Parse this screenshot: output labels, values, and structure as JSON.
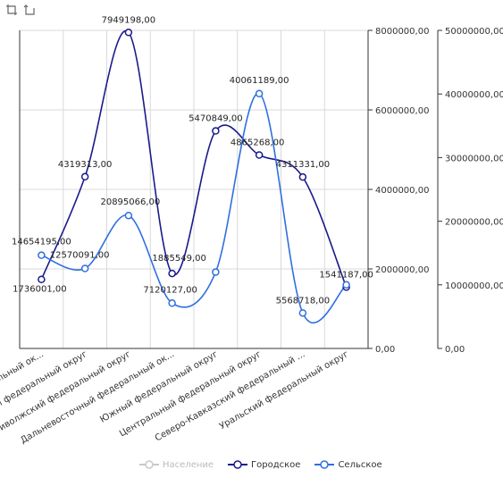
{
  "toolbar": {
    "icons": [
      "crop-zoom-icon",
      "zoom-reset-icon"
    ]
  },
  "colors": {
    "urban": "#1a1a8c",
    "rural": "#2f6fe0",
    "population_disabled": "#c8c8c8",
    "grid": "#d9d9d9",
    "axis": "#333333"
  },
  "legend": [
    {
      "label": "Население",
      "enabled": false
    },
    {
      "label": "Городское",
      "enabled": true
    },
    {
      "label": "Сельское",
      "enabled": true
    }
  ],
  "chart_data": {
    "type": "line",
    "smooth": true,
    "categories": [
      "Северо-Западный федеральный ок...",
      "Сибирский федеральный округ",
      "Приволжский федеральный округ",
      "Дальневосточный федеральный ок...",
      "Южный федеральный округ",
      "Центральный федеральный округ",
      "Северо-Кавказский федеральный ...",
      "Уральский федеральный округ"
    ],
    "series": [
      {
        "name": "Городское",
        "axis": "left",
        "values": [
          1736001,
          4319313,
          7949198,
          1885549,
          5470849,
          4865268,
          4311331,
          1541187
        ],
        "labels": [
          "1736001,00",
          "4319313,00",
          "7949198,00",
          "1885549,00",
          "5470849,00",
          "4865268,00",
          "4311331,00",
          "1541187,00"
        ]
      },
      {
        "name": "Сельское",
        "axis": "right",
        "values": [
          14654195,
          12570091,
          20895066,
          7120127,
          12000000,
          40061189,
          5568718,
          10000000
        ],
        "labels": [
          "14654195,00",
          "12570091,00",
          "20895066,00",
          "7120127,00",
          "",
          "40061189,00",
          "5568718,00",
          ""
        ]
      }
    ],
    "left_axis": {
      "min": 0,
      "max": 8000000,
      "ticks": [
        "0,00",
        "2000000,00",
        "4000000,00",
        "6000000,00",
        "8000000,00"
      ]
    },
    "right_axis": {
      "min": 0,
      "max": 50000000,
      "ticks": [
        "0,00",
        "10000000,00",
        "20000000,00",
        "30000000,00",
        "40000000,00",
        "50000000,00"
      ]
    },
    "grid": true,
    "legend_position": "bottom"
  }
}
